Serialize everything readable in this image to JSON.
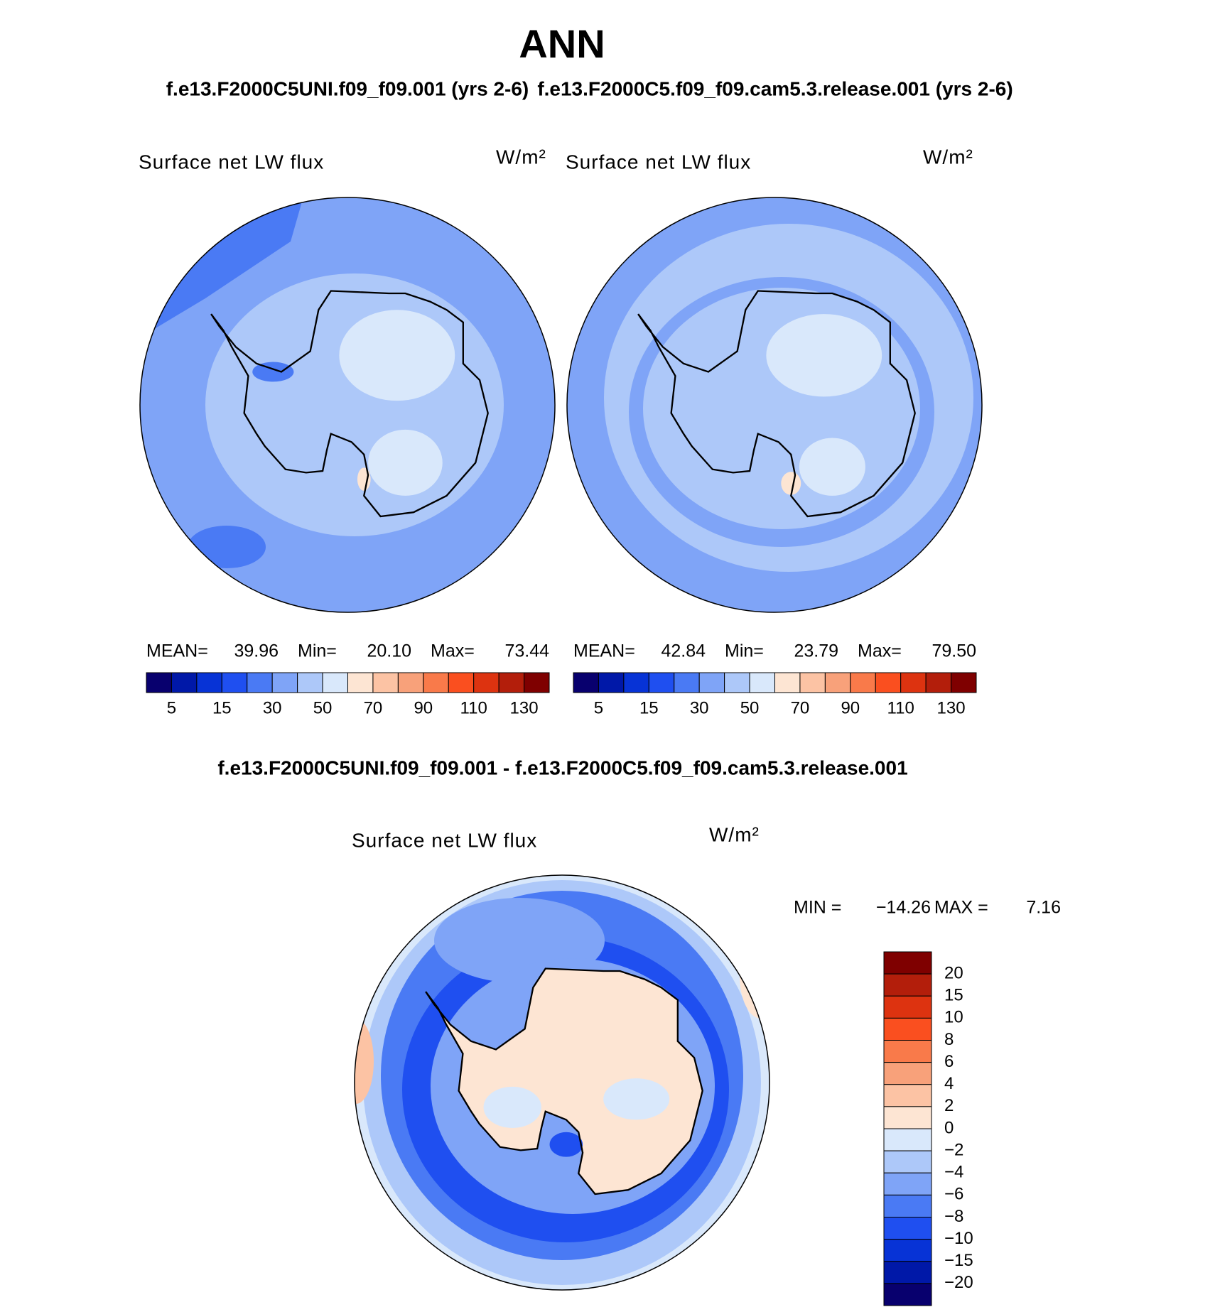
{
  "title": "ANN",
  "panels": [
    {
      "case": "f.e13.F2000C5UNI.f09_f09.001 (yrs 2-6)",
      "variable": "Surface net LW flux",
      "units": "W/m²",
      "stats": {
        "mean_label": "MEAN=",
        "mean": "39.96",
        "min_label": "Min=",
        "min": "20.10",
        "max_label": "Max=",
        "max": "73.44"
      },
      "colorbar_labels": [
        "5",
        "15",
        "30",
        "50",
        "70",
        "90",
        "110",
        "130"
      ]
    },
    {
      "case": "f.e13.F2000C5.f09_f09.cam5.3.release.001 (yrs 2-6)",
      "variable": "Surface net LW flux",
      "units": "W/m²",
      "stats": {
        "mean_label": "MEAN=",
        "mean": "42.84",
        "min_label": "Min=",
        "min": "23.79",
        "max_label": "Max=",
        "max": "79.50"
      },
      "colorbar_labels": [
        "5",
        "15",
        "30",
        "50",
        "70",
        "90",
        "110",
        "130"
      ]
    }
  ],
  "difference": {
    "title": "f.e13.F2000C5UNI.f09_f09.001 - f.e13.F2000C5.f09_f09.cam5.3.release.001",
    "variable": "Surface net LW flux",
    "units": "W/m²",
    "stats": {
      "min_label": "MIN =",
      "min": "−14.26",
      "max_label": "MAX =",
      "max": "7.16"
    },
    "colorbar_labels": [
      "20",
      "15",
      "10",
      "8",
      "6",
      "4",
      "2",
      "0",
      "−2",
      "−4",
      "−6",
      "−8",
      "−10",
      "−15",
      "−20"
    ]
  }
}
